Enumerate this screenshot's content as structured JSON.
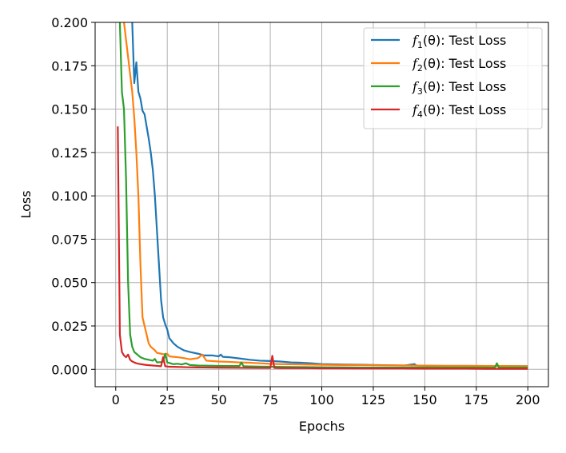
{
  "chart_data": {
    "type": "line",
    "title": "",
    "xlabel": "Epochs",
    "ylabel": "Loss",
    "xlim": [
      -10,
      210
    ],
    "ylim": [
      -0.01,
      0.2
    ],
    "xticks": [
      0,
      25,
      50,
      75,
      100,
      125,
      150,
      175,
      200
    ],
    "xtick_labels": [
      "0",
      "25",
      "50",
      "75",
      "100",
      "125",
      "150",
      "175",
      "200"
    ],
    "yticks": [
      0.0,
      0.025,
      0.05,
      0.075,
      0.1,
      0.125,
      0.15,
      0.175,
      0.2
    ],
    "ytick_labels": [
      "0.000",
      "0.025",
      "0.050",
      "0.075",
      "0.100",
      "0.125",
      "0.150",
      "0.175",
      "0.200"
    ],
    "grid": true,
    "legend_position": "top-right",
    "series": [
      {
        "name": "f1(θ): Test Loss",
        "legend": {
          "func": "f",
          "sub": "1",
          "rest": "(θ): Test Loss"
        },
        "color": "#1f77b4",
        "points": [
          [
            8,
            0.2
          ],
          [
            9,
            0.165
          ],
          [
            10,
            0.177
          ],
          [
            11,
            0.16
          ],
          [
            12,
            0.156
          ],
          [
            13,
            0.149
          ],
          [
            14,
            0.147
          ],
          [
            15,
            0.14
          ],
          [
            16,
            0.133
          ],
          [
            17,
            0.125
          ],
          [
            18,
            0.115
          ],
          [
            19,
            0.1
          ],
          [
            20,
            0.08
          ],
          [
            21,
            0.06
          ],
          [
            22,
            0.04
          ],
          [
            23,
            0.03
          ],
          [
            24,
            0.026
          ],
          [
            25,
            0.023
          ],
          [
            26,
            0.018
          ],
          [
            28,
            0.015
          ],
          [
            30,
            0.013
          ],
          [
            33,
            0.011
          ],
          [
            36,
            0.01
          ],
          [
            40,
            0.009
          ],
          [
            43,
            0.008
          ],
          [
            47,
            0.008
          ],
          [
            50,
            0.0075
          ],
          [
            51,
            0.0085
          ],
          [
            52,
            0.0072
          ],
          [
            55,
            0.007
          ],
          [
            60,
            0.0063
          ],
          [
            65,
            0.0055
          ],
          [
            70,
            0.005
          ],
          [
            75,
            0.0048
          ],
          [
            80,
            0.0045
          ],
          [
            85,
            0.004
          ],
          [
            90,
            0.0038
          ],
          [
            95,
            0.0035
          ],
          [
            100,
            0.003
          ],
          [
            110,
            0.0028
          ],
          [
            120,
            0.0026
          ],
          [
            125,
            0.0025
          ],
          [
            130,
            0.0024
          ],
          [
            140,
            0.0022
          ],
          [
            145,
            0.003
          ],
          [
            146,
            0.0022
          ],
          [
            150,
            0.0021
          ],
          [
            160,
            0.002
          ],
          [
            170,
            0.002
          ],
          [
            180,
            0.0019
          ],
          [
            190,
            0.0019
          ],
          [
            200,
            0.0018
          ]
        ]
      },
      {
        "name": "f2(θ): Test Loss",
        "legend": {
          "func": "f",
          "sub": "2",
          "rest": "(θ): Test Loss"
        },
        "color": "#ff7f0e",
        "points": [
          [
            4,
            0.2
          ],
          [
            5,
            0.19
          ],
          [
            6,
            0.18
          ],
          [
            7,
            0.17
          ],
          [
            8,
            0.16
          ],
          [
            9,
            0.145
          ],
          [
            10,
            0.125
          ],
          [
            11,
            0.1
          ],
          [
            12,
            0.06
          ],
          [
            13,
            0.03
          ],
          [
            14,
            0.025
          ],
          [
            15,
            0.02
          ],
          [
            16,
            0.015
          ],
          [
            17,
            0.013
          ],
          [
            18,
            0.012
          ],
          [
            19,
            0.011
          ],
          [
            20,
            0.0095
          ],
          [
            22,
            0.009
          ],
          [
            24,
            0.0085
          ],
          [
            25,
            0.009
          ],
          [
            26,
            0.0075
          ],
          [
            28,
            0.0072
          ],
          [
            30,
            0.007
          ],
          [
            33,
            0.0065
          ],
          [
            36,
            0.0058
          ],
          [
            40,
            0.0065
          ],
          [
            42,
            0.0085
          ],
          [
            44,
            0.005
          ],
          [
            50,
            0.0045
          ],
          [
            55,
            0.0043
          ],
          [
            60,
            0.004
          ],
          [
            65,
            0.0038
          ],
          [
            70,
            0.0035
          ],
          [
            75,
            0.0032
          ],
          [
            80,
            0.003
          ],
          [
            90,
            0.0028
          ],
          [
            100,
            0.0026
          ],
          [
            110,
            0.0025
          ],
          [
            120,
            0.0024
          ],
          [
            130,
            0.0023
          ],
          [
            140,
            0.0022
          ],
          [
            150,
            0.0021
          ],
          [
            160,
            0.002
          ],
          [
            170,
            0.002
          ],
          [
            180,
            0.0019
          ],
          [
            190,
            0.0019
          ],
          [
            200,
            0.0018
          ]
        ]
      },
      {
        "name": "f3(θ): Test Loss",
        "legend": {
          "func": "f",
          "sub": "3",
          "rest": "(θ): Test Loss"
        },
        "color": "#2ca02c",
        "points": [
          [
            2,
            0.2
          ],
          [
            3,
            0.16
          ],
          [
            4,
            0.15
          ],
          [
            5,
            0.11
          ],
          [
            6,
            0.05
          ],
          [
            7,
            0.02
          ],
          [
            8,
            0.013
          ],
          [
            9,
            0.01
          ],
          [
            10,
            0.009
          ],
          [
            12,
            0.007
          ],
          [
            14,
            0.006
          ],
          [
            16,
            0.0055
          ],
          [
            18,
            0.005
          ],
          [
            19,
            0.006
          ],
          [
            20,
            0.004
          ],
          [
            22,
            0.0042
          ],
          [
            23,
            0.0045
          ],
          [
            24,
            0.009
          ],
          [
            25,
            0.004
          ],
          [
            28,
            0.003
          ],
          [
            30,
            0.0032
          ],
          [
            32,
            0.0028
          ],
          [
            34,
            0.0035
          ],
          [
            36,
            0.0025
          ],
          [
            40,
            0.0022
          ],
          [
            45,
            0.0021
          ],
          [
            50,
            0.002
          ],
          [
            55,
            0.0019
          ],
          [
            60,
            0.0019
          ],
          [
            61,
            0.004
          ],
          [
            62,
            0.0018
          ],
          [
            65,
            0.0017
          ],
          [
            70,
            0.0016
          ],
          [
            75,
            0.0015
          ],
          [
            80,
            0.0014
          ],
          [
            90,
            0.0013
          ],
          [
            100,
            0.0012
          ],
          [
            110,
            0.0011
          ],
          [
            120,
            0.001
          ],
          [
            130,
            0.001
          ],
          [
            140,
            0.001
          ],
          [
            150,
            0.001
          ],
          [
            160,
            0.001
          ],
          [
            170,
            0.001
          ],
          [
            180,
            0.001
          ],
          [
            184,
            0.001
          ],
          [
            185,
            0.0035
          ],
          [
            186,
            0.001
          ],
          [
            190,
            0.001
          ],
          [
            200,
            0.001
          ]
        ]
      },
      {
        "name": "f4(θ): Test Loss",
        "legend": {
          "func": "f",
          "sub": "4",
          "rest": "(θ): Test Loss"
        },
        "color": "#d62728",
        "points": [
          [
            1,
            0.14
          ],
          [
            2,
            0.02
          ],
          [
            3,
            0.01
          ],
          [
            4,
            0.008
          ],
          [
            5,
            0.007
          ],
          [
            6,
            0.0085
          ],
          [
            7,
            0.0055
          ],
          [
            8,
            0.0045
          ],
          [
            10,
            0.0035
          ],
          [
            12,
            0.003
          ],
          [
            15,
            0.0025
          ],
          [
            18,
            0.0022
          ],
          [
            20,
            0.002
          ],
          [
            22,
            0.0018
          ],
          [
            23,
            0.007
          ],
          [
            24,
            0.0018
          ],
          [
            26,
            0.0015
          ],
          [
            30,
            0.0014
          ],
          [
            35,
            0.0012
          ],
          [
            40,
            0.0011
          ],
          [
            50,
            0.001
          ],
          [
            60,
            0.0009
          ],
          [
            70,
            0.0008
          ],
          [
            75,
            0.0008
          ],
          [
            76,
            0.0078
          ],
          [
            77,
            0.0008
          ],
          [
            80,
            0.0007
          ],
          [
            90,
            0.0007
          ],
          [
            100,
            0.0006
          ],
          [
            110,
            0.0006
          ],
          [
            120,
            0.0005
          ],
          [
            130,
            0.0005
          ],
          [
            140,
            0.0005
          ],
          [
            150,
            0.0004
          ],
          [
            160,
            0.0004
          ],
          [
            170,
            0.0004
          ],
          [
            180,
            0.0003
          ],
          [
            190,
            0.0003
          ],
          [
            200,
            0.0003
          ]
        ]
      }
    ]
  }
}
